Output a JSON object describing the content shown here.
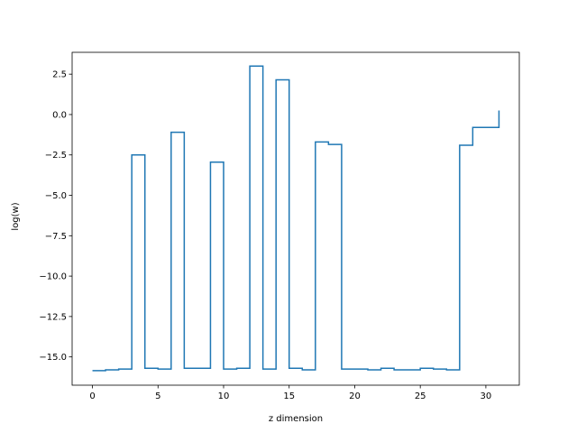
{
  "chart_data": {
    "type": "line",
    "drawstyle": "steps-post",
    "xlabel": "z dimension",
    "ylabel": "log(w)",
    "xlim": [
      -1.55,
      32.55
    ],
    "ylim": [
      -16.75,
      3.85
    ],
    "xticks": [
      0,
      5,
      10,
      15,
      20,
      25,
      30
    ],
    "yticks": [
      2.5,
      0.0,
      -2.5,
      -5.0,
      -7.5,
      -10.0,
      -12.5,
      -15.0
    ],
    "ytick_labels": [
      "2.5",
      "0.0",
      "−2.5",
      "−5.0",
      "−7.5",
      "−10.0",
      "−12.5",
      "−15.0"
    ],
    "grid": false,
    "series": [
      {
        "color": "#1f77b4",
        "x": [
          0,
          1,
          2,
          3,
          4,
          5,
          6,
          7,
          8,
          9,
          10,
          11,
          12,
          13,
          14,
          15,
          16,
          17,
          18,
          19,
          20,
          21,
          22,
          23,
          24,
          25,
          26,
          27,
          28,
          29,
          30,
          31
        ],
        "values": [
          -15.85,
          -15.8,
          -15.75,
          -2.5,
          -15.7,
          -15.75,
          -1.1,
          -15.7,
          -15.7,
          -2.95,
          -15.75,
          -15.7,
          3.0,
          -15.75,
          2.15,
          -15.7,
          -15.8,
          -1.7,
          -1.85,
          -15.75,
          -15.75,
          -15.8,
          -15.7,
          -15.8,
          -15.8,
          -15.7,
          -15.75,
          -15.8,
          -1.9,
          -0.8,
          -0.8,
          0.25
        ]
      }
    ]
  }
}
